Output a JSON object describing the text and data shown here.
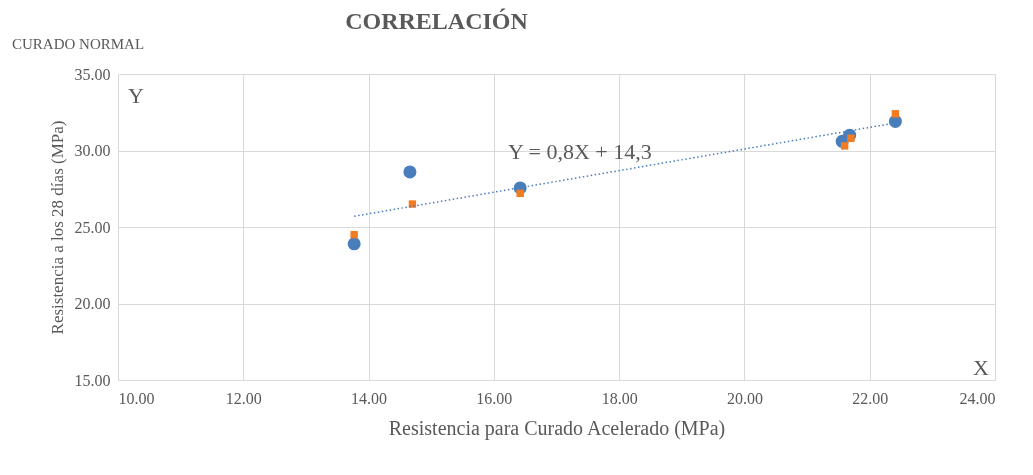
{
  "chart_data": {
    "type": "scatter",
    "title": "CORRELACIÓN",
    "xlabel": "Resistencia para Curado Acelerado (MPa)",
    "ylabel": "Resistencia a los 28 días (MPa)",
    "annotations": [
      "CURADO NORMAL",
      "Y",
      "X",
      "Y = 0,8X + 14,3"
    ],
    "series": [
      {
        "color": "#4a7ebb",
        "marker": "circle",
        "x": [
          13.77,
          14.66,
          16.42,
          21.56,
          21.68,
          22.41
        ],
        "values": [
          23.9,
          28.6,
          27.55,
          30.6,
          31.0,
          31.9
        ]
      },
      {
        "color": "#f47c20",
        "marker": "square",
        "x": [
          13.77,
          14.7,
          16.42,
          21.6,
          21.7,
          22.41
        ],
        "values": [
          24.5,
          26.5,
          27.2,
          30.3,
          30.8,
          32.4
        ]
      },
      {
        "type": "line",
        "color": "#4a7ebb",
        "line_style": "dotted",
        "x": [
          13.77,
          22.41
        ],
        "values": [
          25.7,
          31.8
        ]
      }
    ],
    "xlim": [
      10,
      24
    ],
    "xticks": [
      {
        "value": 10,
        "label": "10.00"
      },
      {
        "value": 12,
        "label": "12.00"
      },
      {
        "value": 14,
        "label": "14.00"
      },
      {
        "value": 16,
        "label": "16.00"
      },
      {
        "value": 18,
        "label": "18.00"
      },
      {
        "value": 20,
        "label": "20.00"
      },
      {
        "value": 22,
        "label": "22.00"
      },
      {
        "value": 24,
        "label": "24.00"
      }
    ],
    "ylim": [
      15,
      35
    ],
    "yticks": [
      {
        "value": 15,
        "label": "15.00"
      },
      {
        "value": 20,
        "label": "20.00"
      },
      {
        "value": 25,
        "label": "25.00"
      },
      {
        "value": 30,
        "label": "30.00"
      },
      {
        "value": 35,
        "label": "35.00"
      }
    ],
    "grid": true
  }
}
